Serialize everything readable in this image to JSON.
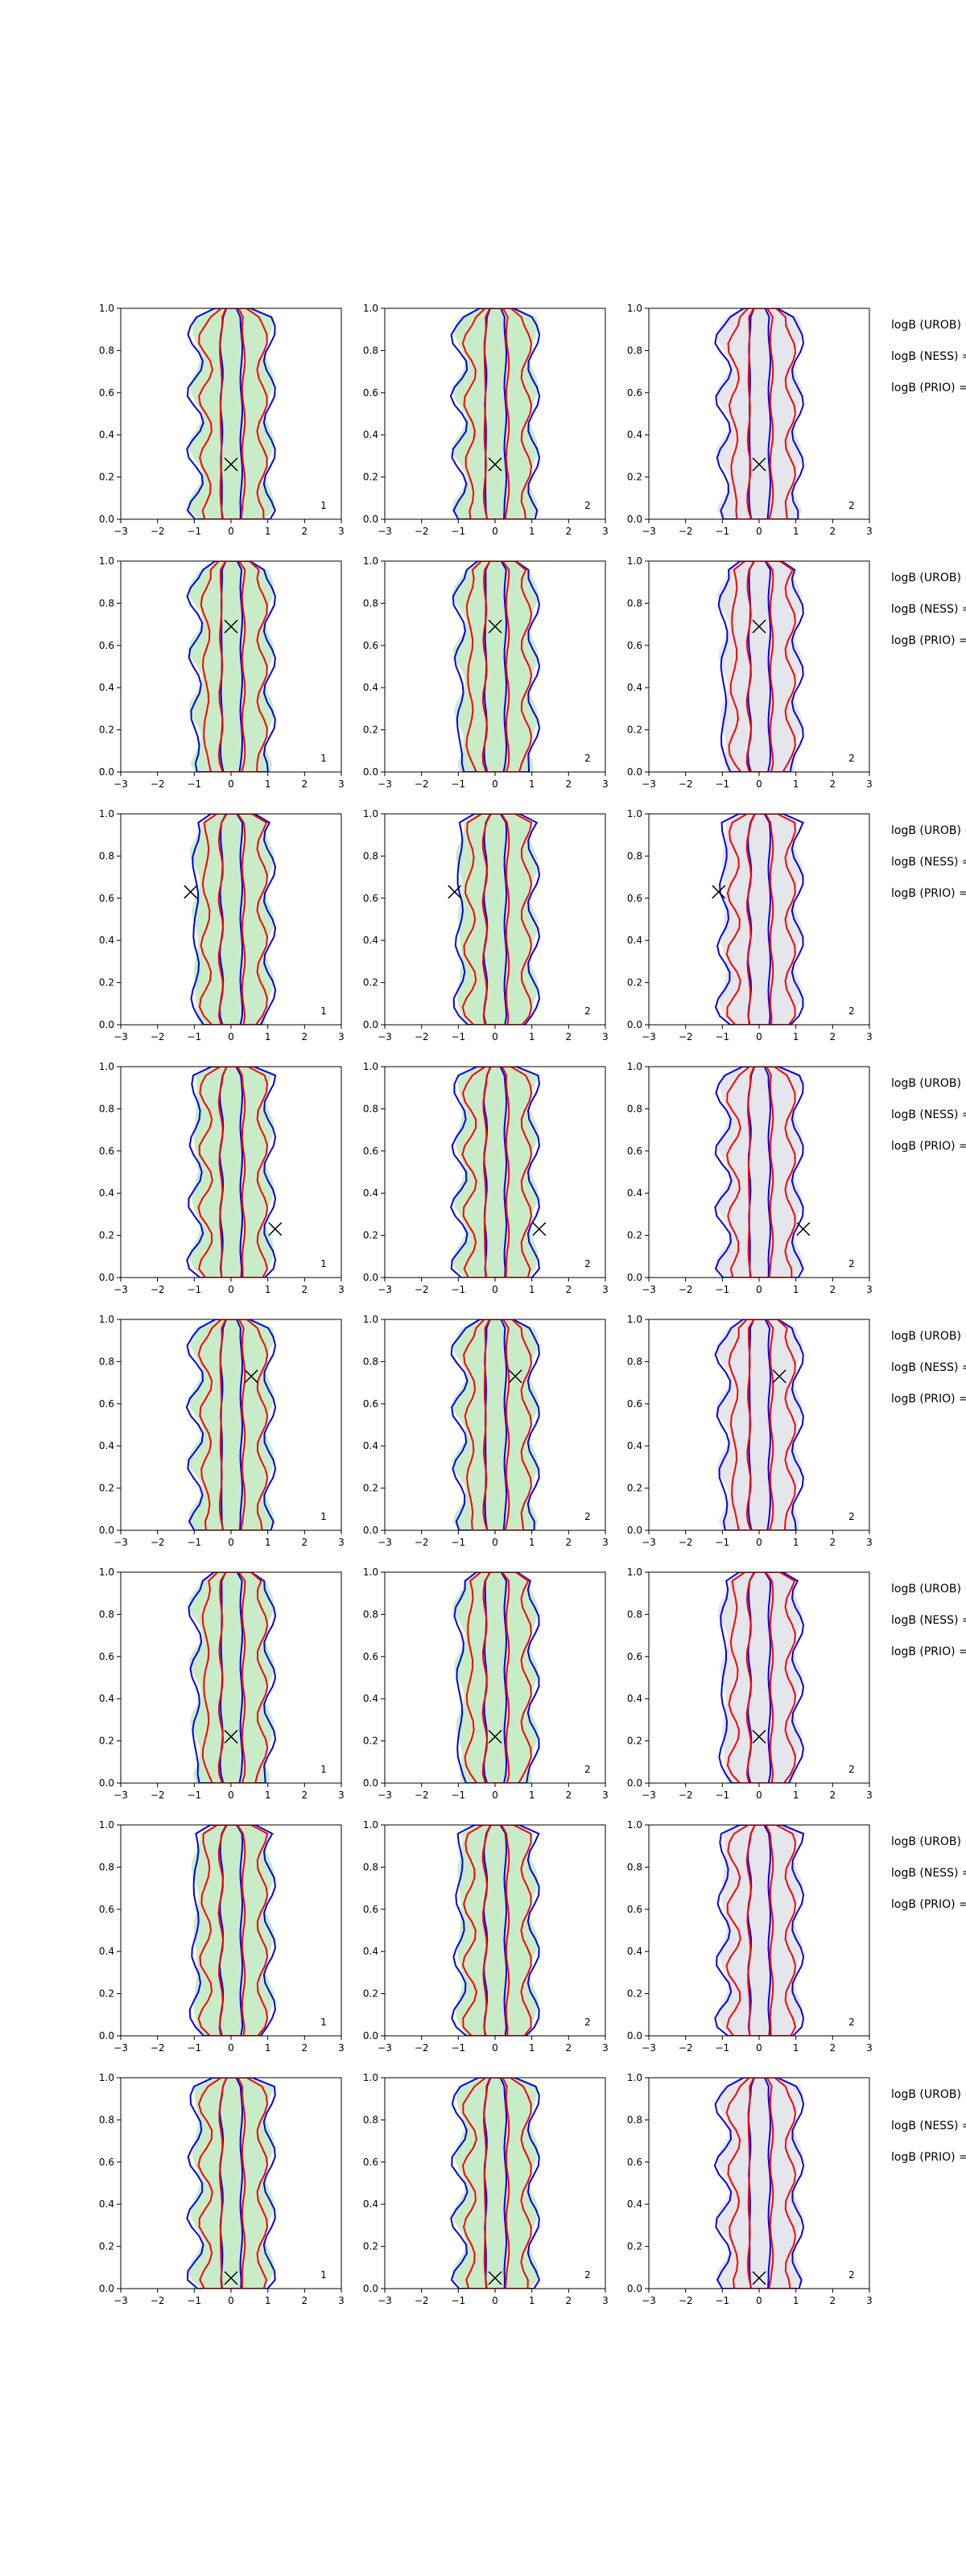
{
  "figure": {
    "bayes_labels": [
      "logB (UROB) =",
      "logB (NESS) =",
      "logB (PRIO) ="
    ]
  },
  "colors": {
    "inner_contour": "#0000ee",
    "outer_contour": "#ff0000",
    "fill_green": "#c8ecc8",
    "fill_grey": "#e4e6ec",
    "marker": "#000000"
  },
  "chart_data": {
    "type": "contour",
    "panel_columns": 3,
    "panel_rows": 8,
    "xlim": [
      -3,
      3
    ],
    "ylim": [
      0,
      1
    ],
    "xticks": [
      "−3",
      "−2",
      "−1",
      "0",
      "1",
      "2",
      "3"
    ],
    "yticks": [
      "0.0",
      "0.2",
      "0.4",
      "0.6",
      "0.8",
      "1.0"
    ],
    "grid": false,
    "legend": "none",
    "column_annotations": [
      "1",
      "2",
      "2"
    ],
    "column_fills": [
      "green",
      "green",
      "grey"
    ],
    "truth_markers": [
      {
        "row": 1,
        "x": 0.0,
        "y": 0.26
      },
      {
        "row": 2,
        "x": 0.0,
        "y": 0.69
      },
      {
        "row": 3,
        "x": -1.1,
        "y": 0.63
      },
      {
        "row": 4,
        "x": 1.2,
        "y": 0.23
      },
      {
        "row": 5,
        "x": 0.55,
        "y": 0.73
      },
      {
        "row": 6,
        "x": 0.0,
        "y": 0.22
      },
      {
        "row": 7,
        "x": null,
        "y": null
      },
      {
        "row": 8,
        "x": 0.0,
        "y": 0.05
      }
    ]
  }
}
